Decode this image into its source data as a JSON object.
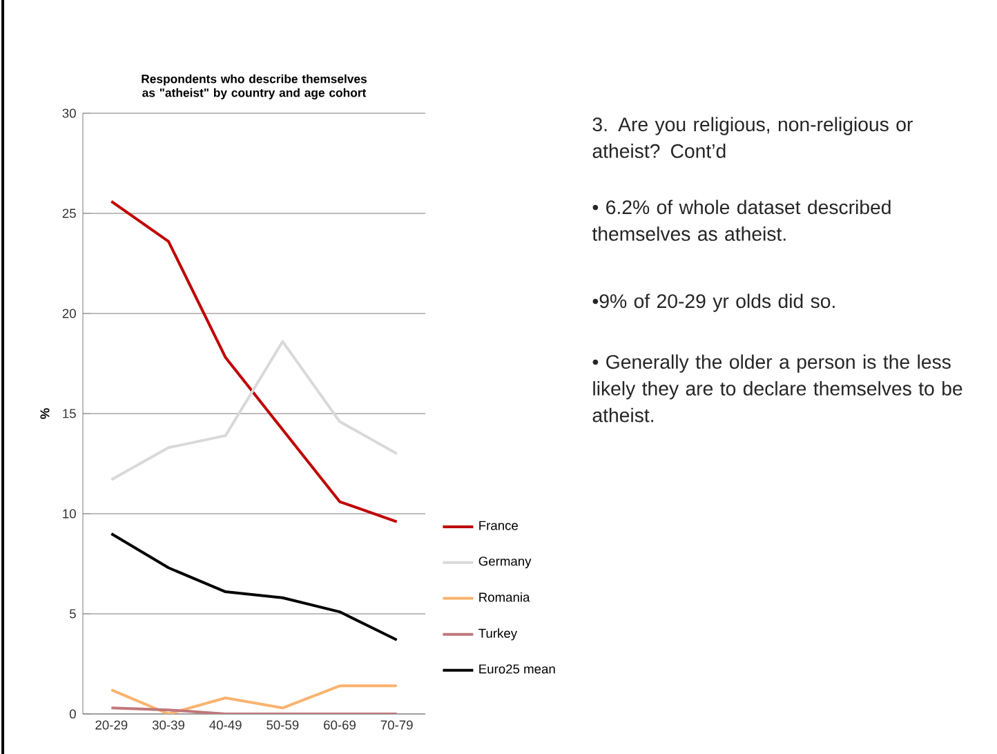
{
  "chart_data": {
    "type": "line",
    "title": "Respondents who describe themselves as \"atheist\" by country and age cohort",
    "ylabel": "%",
    "categories": [
      "20-29",
      "30-39",
      "40-49",
      "50-59",
      "60-69",
      "70-79"
    ],
    "series": [
      {
        "name": "France",
        "color": "#c00000",
        "values": [
          25.6,
          23.6,
          17.8,
          14.2,
          10.6,
          9.6
        ]
      },
      {
        "name": "Germany",
        "color": "#d9d9d9",
        "values": [
          11.7,
          13.3,
          13.9,
          18.6,
          14.6,
          13.0
        ]
      },
      {
        "name": "Romania",
        "color": "#fab36e",
        "values": [
          1.2,
          0.0,
          0.8,
          0.3,
          1.4,
          1.4
        ]
      },
      {
        "name": "Turkey",
        "color": "#c0777a",
        "values": [
          0.3,
          0.2,
          0.0,
          0.0,
          0.0,
          0.0
        ]
      },
      {
        "name": "Euro25 mean",
        "color": "#000000",
        "values": [
          9.0,
          7.3,
          6.1,
          5.8,
          5.1,
          3.7
        ]
      }
    ],
    "ylim": [
      0,
      30
    ],
    "yticks": [
      0,
      5,
      10,
      15,
      20,
      25,
      30
    ],
    "grid": "y",
    "legend": "right",
    "marker": "none",
    "line_style": "solid",
    "annotations": [
      "3.  Are you religious, non-religious or atheist? Cont’d",
      "• 6.2% of whole dataset described themselves as atheist.",
      "•9%  of 20-29 yr olds did so.",
      "• Generally the older a person is the less likely they are to declare themselves to be atheist."
    ]
  }
}
